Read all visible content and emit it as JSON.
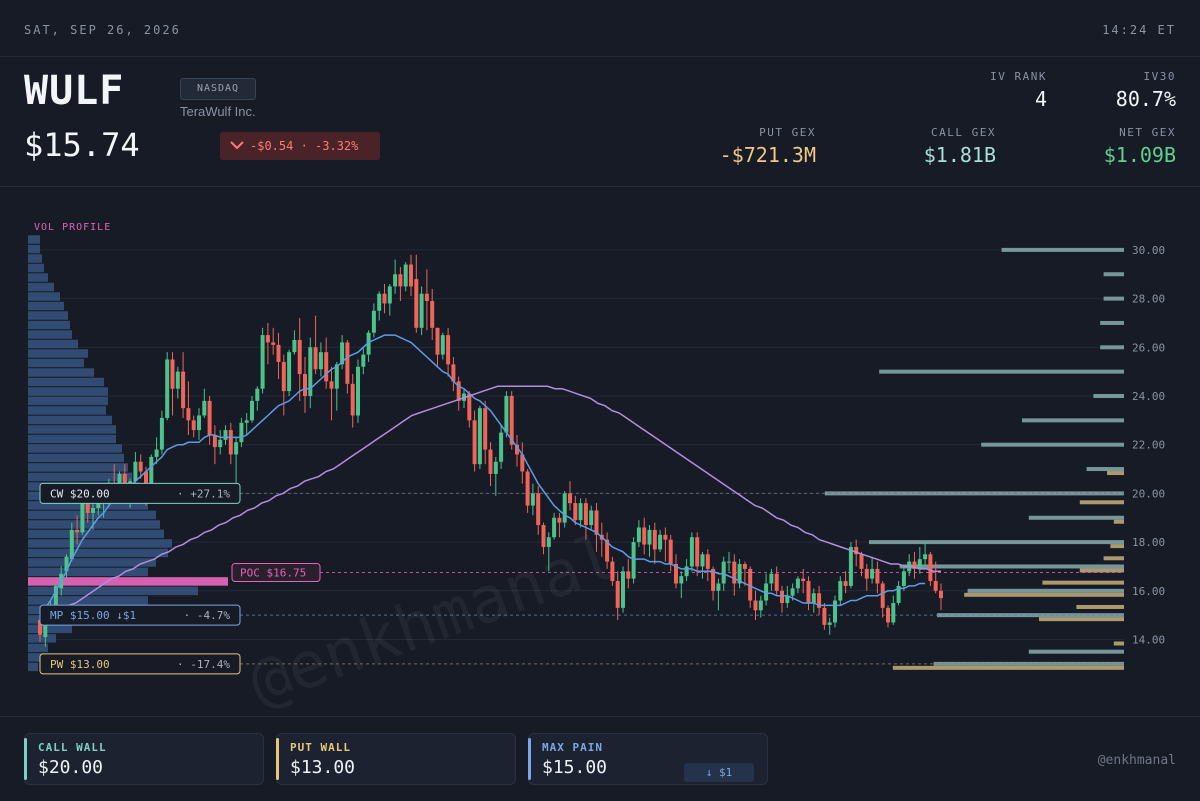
{
  "topbar": {
    "date": "SAT, SEP 26, 2026",
    "time": "14:24 ET"
  },
  "header": {
    "ticker": "WULF",
    "exchange": "NASDAQ",
    "company": "TeraWulf Inc.",
    "price": "$15.74",
    "change_icon": "chevron-down-icon",
    "change": "-$0.54 · -3.32%",
    "stats": {
      "iv_rank": {
        "label": "IV RANK",
        "value": "4"
      },
      "iv30": {
        "label": "IV30",
        "value": "80.7%"
      },
      "put_gex": {
        "label": "PUT GEX",
        "value": "-$721.3M"
      },
      "call_gex": {
        "label": "CALL GEX",
        "value": "$1.81B"
      },
      "net_gex": {
        "label": "NET GEX",
        "value": "$1.09B"
      }
    }
  },
  "colors": {
    "up": "#4cc38a",
    "down": "#f0655a",
    "ma_fast": "#5e9de6",
    "ma_slow": "#b58de0",
    "call": "#7fd1c4",
    "put": "#e8c67a",
    "maxpain": "#7aa7e8",
    "poc": "#e064b8"
  },
  "chart_data": {
    "type": "candlestick",
    "vol_profile_label": "VOL PROFILE",
    "y_ticks": [
      "30.00",
      "28.00",
      "26.00",
      "24.00",
      "22.00",
      "20.00",
      "18.00",
      "16.00",
      "14.00"
    ],
    "ylim": [
      12.5,
      30.5
    ],
    "levels": [
      {
        "id": "call_wall",
        "name": "CW $20.00",
        "value": 20.0,
        "pct": "+27.1%"
      },
      {
        "id": "poc",
        "name": "POC $16.75",
        "value": 16.75
      },
      {
        "id": "max_pain",
        "name": "MP $15.00 ↓$1",
        "value": 15.0,
        "pct": "-4.7%"
      },
      {
        "id": "put_wall",
        "name": "PW $13.00",
        "value": 13.0,
        "pct": "-17.4%"
      }
    ],
    "candles": [
      [
        14.8,
        14.9,
        14.2,
        13.9
      ],
      [
        14.1,
        15.1,
        15.0,
        13.7
      ],
      [
        15.0,
        15.6,
        15.2,
        14.6
      ],
      [
        15.2,
        16.3,
        16.2,
        15.0
      ],
      [
        16.1,
        17.0,
        16.7,
        15.8
      ],
      [
        16.8,
        17.5,
        17.4,
        16.5
      ],
      [
        17.3,
        18.8,
        18.5,
        17.2
      ],
      [
        18.5,
        19.1,
        18.4,
        17.9
      ],
      [
        18.4,
        19.8,
        19.6,
        18.3
      ],
      [
        19.6,
        20.3,
        19.2,
        18.8
      ],
      [
        19.2,
        20.2,
        19.4,
        18.5
      ],
      [
        19.4,
        20.0,
        19.6,
        19.1
      ],
      [
        19.6,
        20.4,
        19.7,
        19.0
      ],
      [
        19.7,
        20.6,
        20.4,
        19.5
      ],
      [
        20.4,
        21.2,
        20.2,
        19.8
      ],
      [
        20.2,
        20.9,
        20.8,
        19.9
      ],
      [
        20.8,
        21.2,
        20.1,
        19.6
      ],
      [
        20.1,
        20.6,
        20.5,
        19.4
      ],
      [
        20.5,
        21.7,
        21.3,
        20.3
      ],
      [
        21.3,
        21.6,
        20.9,
        20.6
      ],
      [
        20.9,
        21.1,
        20.2,
        19.5
      ],
      [
        20.2,
        21.6,
        21.5,
        20.0
      ],
      [
        21.5,
        22.3,
        21.8,
        21.2
      ],
      [
        21.8,
        23.4,
        23.1,
        21.6
      ],
      [
        23.1,
        25.8,
        25.5,
        23.0
      ],
      [
        25.5,
        25.8,
        24.3,
        23.2
      ],
      [
        24.3,
        25.2,
        25.0,
        23.9
      ],
      [
        25.0,
        25.8,
        23.5,
        23.1
      ],
      [
        23.5,
        24.6,
        23.0,
        22.4
      ],
      [
        23.0,
        23.2,
        22.6,
        22.3
      ],
      [
        22.6,
        23.5,
        23.2,
        22.2
      ],
      [
        23.2,
        24.3,
        23.8,
        23.1
      ],
      [
        23.8,
        24.0,
        22.4,
        22.0
      ],
      [
        22.4,
        22.8,
        21.9,
        21.2
      ],
      [
        21.9,
        22.6,
        22.2,
        21.6
      ],
      [
        22.2,
        22.8,
        22.6,
        22.0
      ],
      [
        22.6,
        22.9,
        21.6,
        21.2
      ],
      [
        21.6,
        22.3,
        22.1,
        20.0
      ],
      [
        22.1,
        23.1,
        22.9,
        21.9
      ],
      [
        22.9,
        23.3,
        23.0,
        22.4
      ],
      [
        23.0,
        24.0,
        23.8,
        22.9
      ],
      [
        23.8,
        24.4,
        24.3,
        23.4
      ],
      [
        24.3,
        26.8,
        26.5,
        24.1
      ],
      [
        26.5,
        27.0,
        26.2,
        25.3
      ],
      [
        26.2,
        26.8,
        26.1,
        25.7
      ],
      [
        26.1,
        26.6,
        25.4,
        24.7
      ],
      [
        25.4,
        25.7,
        24.2,
        23.2
      ],
      [
        24.2,
        25.9,
        25.8,
        24.0
      ],
      [
        25.8,
        26.7,
        26.3,
        25.7
      ],
      [
        26.3,
        27.2,
        24.9,
        23.8
      ],
      [
        24.9,
        25.6,
        24.0,
        23.3
      ],
      [
        24.0,
        26.4,
        26.0,
        23.5
      ],
      [
        26.0,
        27.3,
        25.1,
        24.9
      ],
      [
        25.1,
        26.2,
        25.8,
        24.8
      ],
      [
        25.8,
        26.4,
        24.6,
        24.3
      ],
      [
        24.6,
        25.2,
        24.3,
        23.0
      ],
      [
        24.3,
        25.4,
        25.3,
        23.4
      ],
      [
        25.3,
        26.5,
        26.2,
        25.1
      ],
      [
        26.2,
        26.3,
        24.5,
        24.1
      ],
      [
        24.5,
        24.9,
        23.2,
        22.7
      ],
      [
        23.2,
        25.5,
        25.2,
        22.9
      ],
      [
        25.2,
        26.0,
        25.7,
        24.9
      ],
      [
        25.7,
        26.7,
        26.6,
        25.4
      ],
      [
        26.6,
        27.8,
        27.5,
        26.4
      ],
      [
        27.5,
        28.3,
        28.2,
        27.1
      ],
      [
        28.2,
        28.6,
        27.8,
        27.4
      ],
      [
        27.8,
        28.6,
        28.5,
        27.3
      ],
      [
        28.5,
        29.6,
        29.0,
        28.2
      ],
      [
        29.0,
        29.3,
        28.5,
        27.9
      ],
      [
        28.5,
        29.5,
        29.4,
        28.3
      ],
      [
        29.4,
        29.8,
        28.5,
        28.1
      ],
      [
        28.8,
        29.8,
        26.8,
        26.6
      ],
      [
        26.8,
        28.5,
        28.2,
        26.5
      ],
      [
        28.2,
        29.2,
        27.9,
        26.7
      ],
      [
        27.9,
        28.4,
        26.8,
        26.3
      ],
      [
        26.8,
        26.8,
        25.7,
        25.2
      ],
      [
        25.7,
        26.6,
        26.5,
        25.5
      ],
      [
        26.5,
        26.8,
        25.3,
        24.8
      ],
      [
        25.3,
        25.6,
        24.6,
        24.2
      ],
      [
        24.6,
        24.8,
        23.8,
        23.4
      ],
      [
        23.8,
        24.3,
        24.1,
        23.5
      ],
      [
        24.1,
        24.2,
        23.0,
        22.7
      ],
      [
        23.0,
        23.4,
        21.2,
        20.9
      ],
      [
        21.2,
        23.6,
        23.5,
        21.0
      ],
      [
        23.5,
        23.8,
        21.8,
        21.2
      ],
      [
        21.8,
        22.1,
        20.8,
        20.3
      ],
      [
        20.8,
        21.5,
        21.3,
        19.9
      ],
      [
        21.3,
        22.8,
        22.5,
        21.0
      ],
      [
        22.5,
        24.2,
        24.0,
        22.3
      ],
      [
        24.0,
        24.2,
        22.0,
        21.8
      ],
      [
        22.0,
        22.4,
        21.6,
        21.1
      ],
      [
        21.6,
        22.1,
        20.9,
        20.4
      ],
      [
        20.9,
        21.0,
        19.5,
        19.2
      ],
      [
        19.5,
        20.4,
        20.0,
        19.1
      ],
      [
        20.0,
        20.3,
        18.7,
        18.3
      ],
      [
        18.7,
        18.8,
        17.8,
        17.5
      ],
      [
        17.8,
        18.4,
        18.2,
        16.8
      ],
      [
        18.2,
        19.2,
        19.0,
        18.1
      ],
      [
        19.0,
        19.2,
        18.8,
        18.2
      ],
      [
        18.8,
        20.1,
        20.0,
        18.6
      ],
      [
        20.0,
        20.5,
        19.6,
        19.3
      ],
      [
        19.6,
        19.9,
        18.9,
        18.7
      ],
      [
        18.9,
        19.8,
        19.6,
        18.6
      ],
      [
        19.6,
        19.8,
        18.7,
        18.1
      ],
      [
        18.7,
        19.5,
        19.3,
        18.5
      ],
      [
        19.3,
        19.6,
        18.3,
        17.6
      ],
      [
        18.3,
        18.8,
        18.1,
        17.4
      ],
      [
        18.1,
        18.4,
        17.2,
        16.9
      ],
      [
        17.2,
        17.4,
        16.4,
        16.2
      ],
      [
        16.4,
        16.8,
        15.3,
        14.8
      ],
      [
        15.3,
        17.0,
        16.8,
        15.1
      ],
      [
        16.8,
        17.3,
        16.5,
        16.1
      ],
      [
        16.5,
        18.2,
        18.0,
        16.3
      ],
      [
        18.0,
        18.9,
        18.6,
        17.8
      ],
      [
        18.6,
        19.0,
        17.9,
        17.5
      ],
      [
        17.9,
        18.7,
        18.5,
        17.4
      ],
      [
        18.5,
        18.8,
        17.7,
        17.1
      ],
      [
        17.7,
        18.5,
        18.3,
        17.6
      ],
      [
        18.3,
        18.6,
        18.1,
        17.2
      ],
      [
        18.1,
        18.3,
        17.1,
        16.8
      ],
      [
        17.1,
        17.5,
        16.3,
        16.1
      ],
      [
        16.3,
        16.8,
        16.6,
        15.7
      ],
      [
        16.6,
        17.3,
        17.0,
        16.4
      ],
      [
        17.0,
        18.4,
        18.2,
        16.8
      ],
      [
        18.2,
        18.4,
        17.0,
        16.6
      ],
      [
        17.0,
        17.6,
        17.5,
        16.5
      ],
      [
        17.5,
        17.7,
        16.9,
        16.4
      ],
      [
        16.9,
        17.0,
        16.0,
        15.6
      ],
      [
        16.0,
        16.5,
        16.3,
        15.2
      ],
      [
        16.3,
        17.4,
        17.2,
        16.0
      ],
      [
        17.2,
        17.6,
        17.2,
        16.8
      ],
      [
        17.2,
        17.5,
        16.3,
        15.8
      ],
      [
        16.3,
        17.3,
        17.1,
        16.1
      ],
      [
        17.1,
        17.2,
        16.9,
        16.2
      ],
      [
        16.9,
        17.0,
        15.6,
        15.3
      ],
      [
        15.6,
        16.0,
        15.2,
        14.8
      ],
      [
        15.2,
        15.8,
        15.6,
        14.9
      ],
      [
        15.6,
        16.7,
        16.3,
        15.4
      ],
      [
        16.3,
        16.9,
        16.7,
        16.0
      ],
      [
        16.7,
        17.0,
        16.0,
        15.8
      ],
      [
        16.0,
        16.2,
        15.5,
        15.1
      ],
      [
        15.5,
        16.2,
        15.8,
        15.3
      ],
      [
        15.8,
        16.3,
        16.1,
        15.6
      ],
      [
        16.1,
        16.6,
        16.5,
        15.9
      ],
      [
        16.5,
        16.9,
        16.4,
        15.9
      ],
      [
        16.4,
        16.6,
        15.5,
        15.2
      ],
      [
        15.5,
        16.1,
        15.9,
        15.1
      ],
      [
        15.9,
        16.2,
        15.3,
        15.0
      ],
      [
        15.3,
        15.5,
        14.6,
        14.4
      ],
      [
        14.6,
        14.9,
        14.7,
        14.2
      ],
      [
        14.7,
        15.8,
        15.6,
        14.5
      ],
      [
        15.6,
        16.6,
        16.4,
        15.4
      ],
      [
        16.4,
        16.8,
        16.2,
        15.9
      ],
      [
        16.2,
        18.0,
        17.8,
        16.1
      ],
      [
        17.8,
        18.1,
        17.5,
        17.0
      ],
      [
        17.5,
        17.6,
        16.9,
        16.6
      ],
      [
        16.9,
        17.1,
        16.5,
        16.0
      ],
      [
        16.5,
        17.4,
        16.9,
        16.3
      ],
      [
        16.9,
        17.2,
        16.3,
        15.9
      ],
      [
        16.3,
        16.4,
        15.3,
        14.9
      ],
      [
        15.3,
        15.4,
        14.7,
        14.5
      ],
      [
        14.7,
        15.8,
        15.5,
        14.6
      ],
      [
        15.5,
        16.4,
        16.2,
        15.4
      ],
      [
        16.2,
        17.0,
        16.8,
        16.0
      ],
      [
        16.8,
        17.5,
        17.2,
        16.6
      ],
      [
        17.2,
        17.6,
        16.9,
        16.5
      ],
      [
        16.9,
        17.8,
        17.3,
        16.7
      ],
      [
        17.3,
        18.0,
        17.5,
        17.0
      ],
      [
        17.5,
        17.6,
        16.4,
        16.2
      ],
      [
        16.4,
        17.2,
        16.0,
        15.9
      ],
      [
        16.0,
        16.3,
        15.7,
        15.2
      ]
    ],
    "ma_fast": [
      15.1,
      15.3,
      15.6,
      16.0,
      16.4,
      16.8,
      17.3,
      17.7,
      18.1,
      18.4,
      18.7,
      19.0,
      19.2,
      19.5,
      19.8,
      20.0,
      20.2,
      20.3,
      20.5,
      20.7,
      20.9,
      21.1,
      21.3,
      21.5,
      21.8,
      21.9,
      22.0,
      22.0,
      22.1,
      22.1,
      22.1,
      22.3,
      22.4,
      22.4,
      22.3,
      22.3,
      22.3,
      22.3,
      22.3,
      22.4,
      22.6,
      22.8,
      23.0,
      23.2,
      23.4,
      23.6,
      23.7,
      23.8,
      24.0,
      24.2,
      24.3,
      24.3,
      24.5,
      24.7,
      24.9,
      25.1,
      25.2,
      25.4,
      25.6,
      25.7,
      25.8,
      26.0,
      26.2,
      26.3,
      26.4,
      26.5,
      26.5,
      26.5,
      26.4,
      26.3,
      26.2,
      26.0,
      25.8,
      25.6,
      25.4,
      25.2,
      25.0,
      24.9,
      24.6,
      24.4,
      24.3,
      24.1,
      23.9,
      23.8,
      23.6,
      23.4,
      23.1,
      22.8,
      22.5,
      22.2,
      21.9,
      21.6,
      21.2,
      20.8,
      20.4,
      20.1,
      19.8,
      19.5,
      19.3,
      19.1,
      19.0,
      18.8,
      18.7,
      18.6,
      18.5,
      18.4,
      18.2,
      18.0,
      17.8,
      17.7,
      17.6,
      17.4,
      17.3,
      17.3,
      17.3,
      17.2,
      17.2,
      17.2,
      17.1,
      17.1,
      17.0,
      16.9,
      16.9,
      16.9,
      16.8,
      16.8,
      16.8,
      16.8,
      16.7,
      16.7,
      16.6,
      16.5,
      16.4,
      16.3,
      16.2,
      16.1,
      16.0,
      15.9,
      15.9,
      15.8,
      15.8,
      15.8,
      15.7,
      15.6,
      15.5,
      15.5,
      15.5,
      15.4,
      15.4,
      15.4,
      15.4,
      15.4,
      15.5,
      15.6,
      15.6,
      15.7,
      15.8,
      15.8,
      15.8,
      15.9,
      16.0,
      16.0,
      16.1,
      16.1,
      16.2,
      16.2,
      16.3,
      16.3
    ],
    "ma_slow": [
      14.9,
      15.0,
      15.1,
      15.2,
      15.4,
      15.5,
      15.7,
      15.9,
      16.1,
      16.3,
      16.5,
      16.6,
      16.8,
      16.9,
      17.1,
      17.2,
      17.3,
      17.5,
      17.6,
      17.8,
      17.9,
      18.1,
      18.2,
      18.4,
      18.5,
      18.7,
      18.8,
      19.0,
      19.1,
      19.3,
      19.4,
      19.6,
      19.7,
      19.9,
      20.0,
      20.2,
      20.3,
      20.5,
      20.6,
      20.7,
      20.9,
      21.0,
      21.2,
      21.4,
      21.6,
      21.8,
      22.0,
      22.2,
      22.4,
      22.6,
      22.8,
      23.0,
      23.2,
      23.3,
      23.4,
      23.5,
      23.6,
      23.7,
      23.8,
      23.9,
      24.0,
      24.1,
      24.2,
      24.3,
      24.4,
      24.4,
      24.4,
      24.4,
      24.4,
      24.4,
      24.4,
      24.4,
      24.3,
      24.3,
      24.2,
      24.1,
      24.0,
      23.9,
      23.7,
      23.6,
      23.4,
      23.3,
      23.1,
      22.9,
      22.7,
      22.5,
      22.3,
      22.1,
      21.9,
      21.7,
      21.5,
      21.3,
      21.1,
      20.9,
      20.7,
      20.5,
      20.3,
      20.1,
      19.9,
      19.7,
      19.5,
      19.4,
      19.2,
      19.0,
      18.9,
      18.7,
      18.6,
      18.4,
      18.3,
      18.1,
      18.0,
      17.9,
      17.8,
      17.7,
      17.6,
      17.5,
      17.4,
      17.3,
      17.2,
      17.1,
      17.1,
      17.0,
      17.0,
      16.9,
      16.9,
      16.8,
      16.8
    ],
    "vol_profile_left": [
      0.06,
      0.06,
      0.07,
      0.08,
      0.1,
      0.13,
      0.16,
      0.18,
      0.2,
      0.21,
      0.22,
      0.25,
      0.3,
      0.28,
      0.33,
      0.38,
      0.4,
      0.4,
      0.39,
      0.42,
      0.44,
      0.44,
      0.47,
      0.48,
      0.5,
      0.52,
      0.56,
      0.58,
      0.6,
      0.64,
      0.66,
      0.68,
      0.72,
      0.7,
      0.64,
      0.6,
      1.0,
      0.85,
      0.6,
      0.42,
      0.32,
      0.22,
      0.14,
      0.1,
      0.08,
      0.05
    ],
    "gex_call_bars": [
      [
        30.0,
        0.36
      ],
      [
        29.0,
        0.06
      ],
      [
        28.0,
        0.06
      ],
      [
        27.0,
        0.07
      ],
      [
        26.0,
        0.07
      ],
      [
        25.0,
        0.72
      ],
      [
        24.0,
        0.09
      ],
      [
        23.0,
        0.3
      ],
      [
        22.0,
        0.42
      ],
      [
        21.0,
        0.11
      ],
      [
        20.0,
        0.88
      ],
      [
        19.0,
        0.28
      ],
      [
        18.0,
        0.75
      ],
      [
        17.0,
        0.66
      ],
      [
        16.0,
        0.46
      ],
      [
        15.0,
        0.55
      ],
      [
        13.5,
        0.28
      ],
      [
        13.0,
        0.56
      ]
    ],
    "gex_put_bars": [
      [
        21.0,
        0.05
      ],
      [
        19.8,
        0.13
      ],
      [
        19.0,
        0.03
      ],
      [
        18.0,
        0.04
      ],
      [
        17.5,
        0.06
      ],
      [
        17.0,
        0.13
      ],
      [
        16.5,
        0.24
      ],
      [
        16.0,
        0.47
      ],
      [
        15.5,
        0.14
      ],
      [
        15.0,
        0.25
      ],
      [
        14.0,
        0.03
      ],
      [
        13.0,
        0.68
      ]
    ],
    "watermark": "@enkhmanal"
  },
  "footer": {
    "cards": [
      {
        "label": "CALL WALL",
        "value": "$20.00"
      },
      {
        "label": "PUT WALL",
        "value": "$13.00"
      },
      {
        "label": "MAX PAIN",
        "value": "$15.00",
        "pill": "↓ $1"
      }
    ],
    "handle": "@enkhmanal"
  }
}
